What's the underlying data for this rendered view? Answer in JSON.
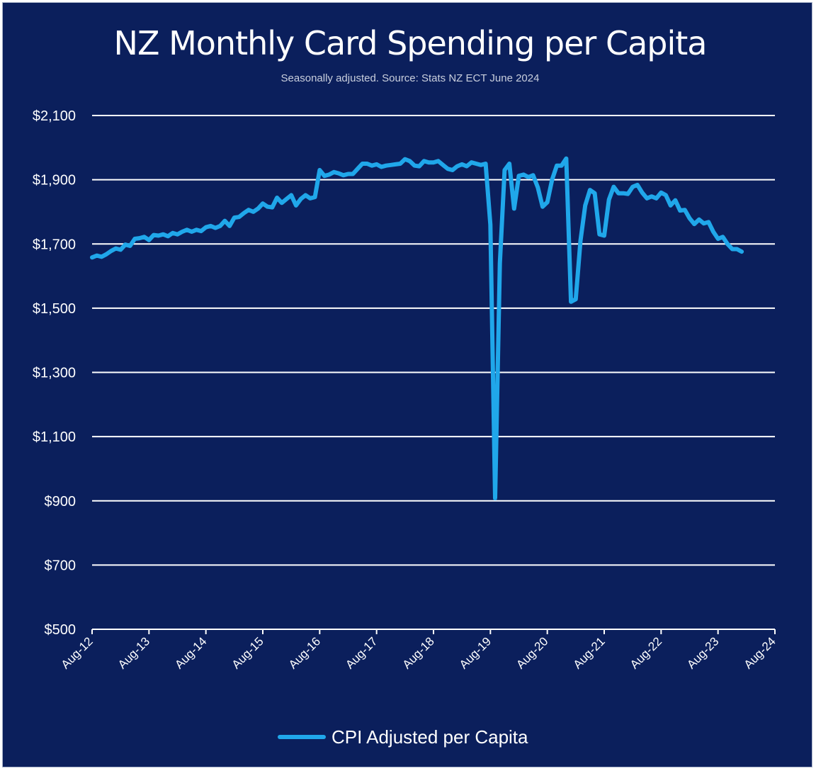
{
  "colors": {
    "background": "#0b1f5c",
    "series": "#20a7ea",
    "gridline": "#ffffff",
    "text": "#ffffff"
  },
  "chart_data": {
    "type": "line",
    "title": "NZ Monthly Card Spending per Capita",
    "subtitle": "Seasonally adjusted. Source: Stats NZ ECT June 2024",
    "xlabel": "",
    "ylabel": "",
    "ylim": [
      500,
      2100
    ],
    "yticks": [
      500,
      700,
      900,
      1100,
      1300,
      1500,
      1700,
      1900,
      2100
    ],
    "ytick_labels": [
      "$500",
      "$700",
      "$900",
      "$1,100",
      "$1,300",
      "$1,500",
      "$1,700",
      "$1,900",
      "$2,100"
    ],
    "xtick_labels": [
      "Aug-12",
      "Aug-13",
      "Aug-14",
      "Aug-15",
      "Aug-16",
      "Aug-17",
      "Aug-18",
      "Aug-19",
      "Aug-20",
      "Aug-21",
      "Aug-22",
      "Aug-23",
      "Aug-24"
    ],
    "grid": true,
    "legend_position": "bottom",
    "series": [
      {
        "name": "CPI Adjusted per Capita",
        "x_start": "Aug-12",
        "frequency": "monthly",
        "values": [
          1658,
          1664,
          1660,
          1668,
          1678,
          1686,
          1682,
          1698,
          1694,
          1716,
          1718,
          1722,
          1712,
          1728,
          1726,
          1730,
          1724,
          1734,
          1730,
          1738,
          1744,
          1738,
          1744,
          1740,
          1752,
          1756,
          1750,
          1756,
          1772,
          1756,
          1782,
          1784,
          1796,
          1806,
          1800,
          1810,
          1826,
          1816,
          1814,
          1844,
          1828,
          1840,
          1852,
          1820,
          1840,
          1852,
          1842,
          1846,
          1930,
          1912,
          1916,
          1924,
          1920,
          1914,
          1918,
          1918,
          1934,
          1950,
          1950,
          1944,
          1948,
          1940,
          1944,
          1946,
          1948,
          1950,
          1964,
          1958,
          1944,
          1942,
          1958,
          1954,
          1954,
          1958,
          1946,
          1934,
          1930,
          1942,
          1948,
          1942,
          1954,
          1950,
          1946,
          1950,
          1760,
          908,
          1640,
          1930,
          1950,
          1810,
          1912,
          1916,
          1908,
          1914,
          1876,
          1816,
          1830,
          1900,
          1944,
          1944,
          1966,
          1520,
          1528,
          1710,
          1820,
          1868,
          1858,
          1730,
          1726,
          1838,
          1878,
          1858,
          1858,
          1856,
          1878,
          1884,
          1860,
          1842,
          1848,
          1842,
          1860,
          1852,
          1820,
          1836,
          1804,
          1806,
          1780,
          1762,
          1776,
          1764,
          1768,
          1738,
          1716,
          1722,
          1700,
          1684,
          1684,
          1676
        ]
      }
    ]
  }
}
